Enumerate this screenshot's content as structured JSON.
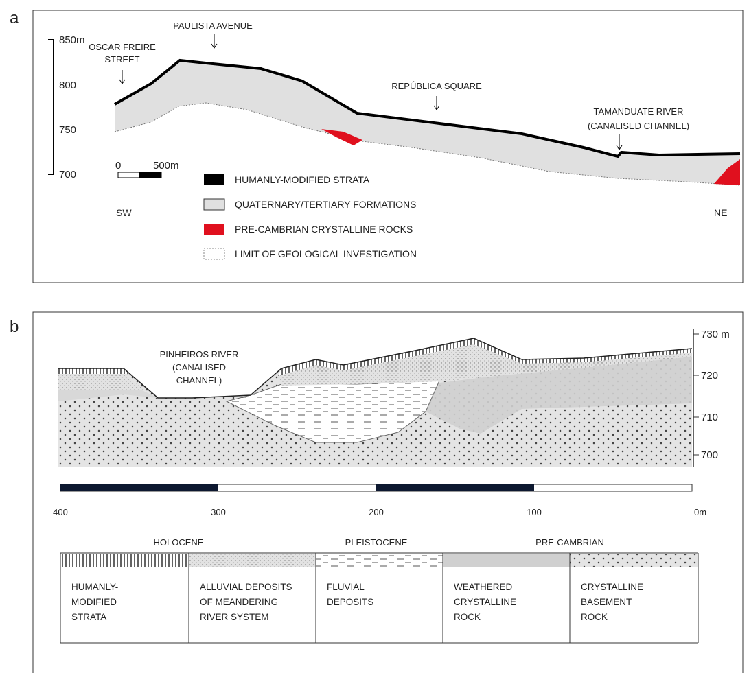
{
  "panel_a": {
    "label": "a",
    "elevation_labels": [
      "850m",
      "800",
      "750",
      "700"
    ],
    "scale_bar": [
      "0",
      "500m"
    ],
    "places": [
      {
        "lines": [
          "PAULISTA AVENUE"
        ]
      },
      {
        "lines": [
          "OSCAR FREIRE",
          "STREET"
        ]
      },
      {
        "lines": [
          "REPÚBLICA SQUARE"
        ]
      },
      {
        "lines": [
          "TAMANDUATE RIVER",
          "(CANALISED CHANNEL)"
        ]
      }
    ],
    "directions": [
      "SW",
      "NE"
    ],
    "legend": [
      "HUMANLY-MODIFIED STRATA",
      "QUATERNARY/TERTIARY FORMATIONS",
      "PRE-CAMBRIAN CRYSTALLINE ROCKS",
      "LIMIT OF GEOLOGICAL INVESTIGATION"
    ]
  },
  "panel_b": {
    "label": "b",
    "elevation_labels": [
      "730 m",
      "720",
      "710",
      "700"
    ],
    "place": [
      "PINHEIROS RIVER",
      "(CANALISED",
      "CHANNEL)"
    ],
    "distance_labels": [
      "400",
      "300",
      "200",
      "100",
      "0m"
    ],
    "periods": [
      "HOLOCENE",
      "PLEISTOCENE",
      "PRE-CAMBRIAN"
    ],
    "units": [
      [
        "HUMANLY-",
        "MODIFIED",
        "STRATA"
      ],
      [
        "ALLUVIAL DEPOSITS",
        "OF MEANDERING",
        "RIVER SYSTEM"
      ],
      [
        "FLUVIAL",
        "DEPOSITS"
      ],
      [
        "WEATHERED",
        "CRYSTALLINE",
        "ROCK"
      ],
      [
        "CRYSTALLINE",
        "BASEMENT",
        "ROCK"
      ]
    ]
  }
}
